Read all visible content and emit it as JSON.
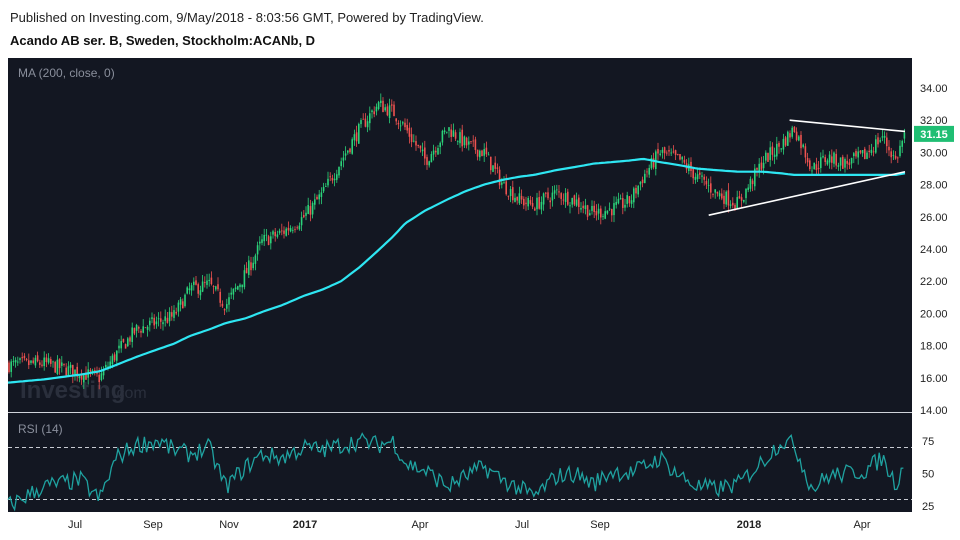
{
  "header": {
    "published": "Published on Investing.com, 9/May/2018 - 8:03:56 GMT, Powered by TradingView.",
    "symbol": "Acando AB ser. B, Sweden, Stockholm:ACANb, D"
  },
  "watermark": {
    "brand": "Investing",
    "suffix": ".com"
  },
  "colors": {
    "background": "#131722",
    "up": "#26a69a",
    "up_bright": "#2bd37a",
    "down": "#ef5350",
    "ma": "#2ee6f2",
    "rsi": "#1fa2a0",
    "trendline": "#ffffff",
    "price_tag": "#1fbe73",
    "axis_text": "#222222"
  },
  "chart_data": [
    {
      "type": "candlestick",
      "indicator_label": "MA (200, close, 0)",
      "ylim": [
        14,
        34
      ],
      "y_ticks": [
        "14.00",
        "16.00",
        "18.00",
        "20.00",
        "22.00",
        "24.00",
        "26.00",
        "28.00",
        "30.00",
        "32.00",
        "34.00"
      ],
      "x_ticks": [
        "Jul",
        "Sep",
        "Nov",
        "2017",
        "Apr",
        "Jul",
        "Sep",
        "2018",
        "Apr"
      ],
      "last_price": "31.15",
      "x_dates": [
        "2016-04-15",
        "2016-05-15",
        "2016-06-15",
        "2016-07-01",
        "2016-07-15",
        "2016-08-01",
        "2016-08-20",
        "2016-09-01",
        "2016-09-15",
        "2016-10-01",
        "2016-10-15",
        "2016-11-01",
        "2016-11-15",
        "2016-12-01",
        "2016-12-20",
        "2017-01-05",
        "2017-01-20",
        "2017-02-05",
        "2017-02-20",
        "2017-03-05",
        "2017-03-15",
        "2017-04-01",
        "2017-04-20",
        "2017-05-05",
        "2017-05-20",
        "2017-06-05",
        "2017-06-20",
        "2017-07-01",
        "2017-07-20",
        "2017-08-05",
        "2017-08-20",
        "2017-09-05",
        "2017-09-20",
        "2017-10-01",
        "2017-10-15",
        "2017-11-01",
        "2017-11-15",
        "2017-12-01",
        "2017-12-20",
        "2018-01-10",
        "2018-01-25",
        "2018-02-05",
        "2018-02-20",
        "2018-03-05",
        "2018-03-20",
        "2018-04-05",
        "2018-04-20",
        "2018-05-01",
        "2018-05-09"
      ],
      "close": [
        16.8,
        16.9,
        16.3,
        16.0,
        17.5,
        19.0,
        19.5,
        19.8,
        21.5,
        21.8,
        20.5,
        22.5,
        24.5,
        25.0,
        26.0,
        27.5,
        29.5,
        31.5,
        33.0,
        32.5,
        31.5,
        29.5,
        31.5,
        30.5,
        30.0,
        28.0,
        27.0,
        26.7,
        27.5,
        27.0,
        26.2,
        26.5,
        27.0,
        28.5,
        30.0,
        29.5,
        28.5,
        27.5,
        26.8,
        29.5,
        30.5,
        31.5,
        29.0,
        29.7,
        29.3,
        29.8,
        31.0,
        29.5,
        31.15
      ],
      "ma200": [
        15.7,
        15.9,
        16.2,
        16.4,
        16.8,
        17.3,
        17.8,
        18.1,
        18.6,
        19.0,
        19.4,
        19.7,
        20.1,
        20.5,
        21.1,
        21.5,
        22.0,
        22.9,
        23.9,
        24.8,
        25.6,
        26.4,
        27.1,
        27.6,
        28.0,
        28.3,
        28.5,
        28.6,
        28.9,
        29.1,
        29.3,
        29.4,
        29.5,
        29.6,
        29.4,
        29.2,
        29.0,
        28.9,
        28.8,
        28.8,
        28.7,
        28.6,
        28.6,
        28.6,
        28.6,
        28.6,
        28.6,
        28.6,
        28.7
      ],
      "trendlines": [
        {
          "from": [
            "2018-02-01",
            32.0
          ],
          "to": [
            "2018-05-09",
            31.3
          ]
        },
        {
          "from": [
            "2017-11-25",
            26.1
          ],
          "to": [
            "2018-05-09",
            28.8
          ]
        }
      ]
    },
    {
      "type": "line",
      "indicator_label": "RSI (14)",
      "ylim": [
        15,
        85
      ],
      "y_ticks": [
        "25",
        "50",
        "75"
      ],
      "levels": [
        30,
        70
      ],
      "x_dates": [
        "2016-04-15",
        "2016-05-15",
        "2016-06-15",
        "2016-07-01",
        "2016-07-15",
        "2016-08-01",
        "2016-08-20",
        "2016-09-01",
        "2016-09-15",
        "2016-10-01",
        "2016-10-15",
        "2016-11-01",
        "2016-11-15",
        "2016-12-01",
        "2016-12-20",
        "2017-01-05",
        "2017-01-20",
        "2017-02-05",
        "2017-02-20",
        "2017-03-05",
        "2017-03-15",
        "2017-04-01",
        "2017-04-20",
        "2017-05-05",
        "2017-05-20",
        "2017-06-05",
        "2017-06-20",
        "2017-07-01",
        "2017-07-20",
        "2017-08-05",
        "2017-08-20",
        "2017-09-05",
        "2017-09-20",
        "2017-10-01",
        "2017-10-15",
        "2017-11-01",
        "2017-11-15",
        "2017-12-01",
        "2017-12-20",
        "2018-01-10",
        "2018-01-25",
        "2018-02-05",
        "2018-02-20",
        "2018-03-05",
        "2018-03-20",
        "2018-04-05",
        "2018-04-20",
        "2018-05-01",
        "2018-05-09"
      ],
      "values": [
        25,
        40,
        45,
        30,
        62,
        72,
        75,
        68,
        65,
        70,
        40,
        55,
        65,
        62,
        70,
        68,
        72,
        75,
        72,
        75,
        58,
        52,
        40,
        48,
        55,
        45,
        38,
        32,
        48,
        50,
        42,
        52,
        50,
        55,
        62,
        48,
        40,
        38,
        42,
        60,
        75,
        72,
        38,
        48,
        50,
        52,
        62,
        42,
        58
      ]
    }
  ]
}
